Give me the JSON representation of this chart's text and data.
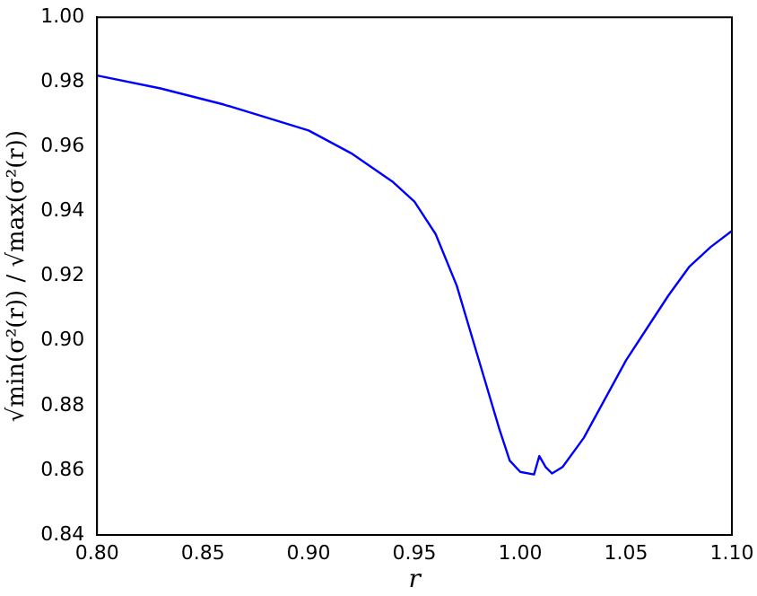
{
  "chart_data": {
    "type": "line",
    "xlabel": "r",
    "ylabel": "√min(σ²(r)) / √max(σ²(r))",
    "x": [
      0.8,
      0.83,
      0.86,
      0.88,
      0.9,
      0.92,
      0.94,
      0.95,
      0.96,
      0.97,
      0.98,
      0.99,
      0.995,
      1.0,
      1.0065,
      1.009,
      1.012,
      1.015,
      1.02,
      1.03,
      1.04,
      1.05,
      1.06,
      1.07,
      1.08,
      1.09,
      1.1
    ],
    "series": [
      {
        "color": "#0000ff",
        "values": [
          0.982,
          0.978,
          0.973,
          0.969,
          0.965,
          0.958,
          0.949,
          0.943,
          0.933,
          0.917,
          0.895,
          0.873,
          0.863,
          0.8595,
          0.8587,
          0.8644,
          0.861,
          0.859,
          0.861,
          0.87,
          0.882,
          0.894,
          0.904,
          0.914,
          0.923,
          0.929,
          0.934
        ]
      }
    ],
    "xlim": [
      0.8,
      1.1
    ],
    "xticks": [
      {
        "value": 0.8,
        "label": "0.80"
      },
      {
        "value": 0.85,
        "label": "0.85"
      },
      {
        "value": 0.9,
        "label": "0.90"
      },
      {
        "value": 0.95,
        "label": "0.95"
      },
      {
        "value": 1.0,
        "label": "1.00"
      },
      {
        "value": 1.05,
        "label": "1.05"
      },
      {
        "value": 1.1,
        "label": "1.10"
      }
    ],
    "ylim": [
      0.84,
      1.0
    ],
    "yticks": [
      {
        "value": 0.84,
        "label": "0.84"
      },
      {
        "value": 0.86,
        "label": "0.86"
      },
      {
        "value": 0.88,
        "label": "0.88"
      },
      {
        "value": 0.9,
        "label": "0.90"
      },
      {
        "value": 0.92,
        "label": "0.92"
      },
      {
        "value": 0.94,
        "label": "0.94"
      },
      {
        "value": 0.96,
        "label": "0.96"
      },
      {
        "value": 0.98,
        "label": "0.98"
      },
      {
        "value": 1.0,
        "label": "1.00"
      }
    ],
    "grid": false,
    "legend": false,
    "marker": "none",
    "line_style": "solid"
  }
}
